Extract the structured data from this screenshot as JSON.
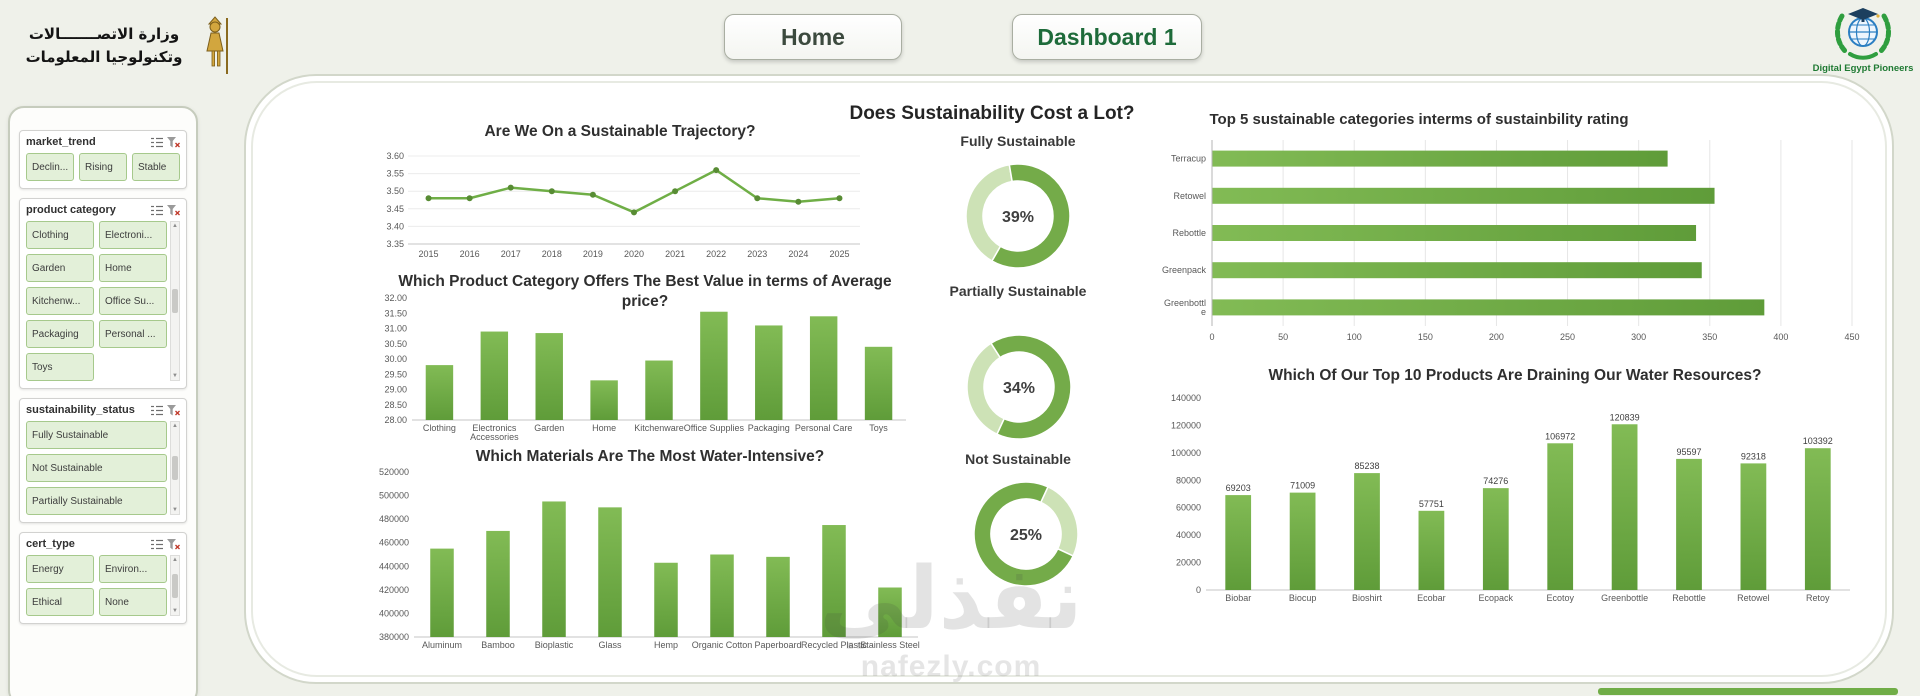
{
  "header": {
    "ministry": {
      "line1": "وزارة الاتصـــــــالات",
      "line2": "وتكنولوجيا المعلومات"
    },
    "nav": {
      "home": "Home",
      "dashboard": "Dashboard 1"
    },
    "brand": {
      "caption": "Digital Egypt Pioneers"
    }
  },
  "watermark": {
    "arabic": "نفذلي",
    "latin": "nafezly.com"
  },
  "colors": {
    "accent_green": "#70AD47",
    "donut_light": "#CDE2B6",
    "page_bg": "#EFF1EA"
  },
  "slicers": [
    {
      "title": "market_trend",
      "columns": 3,
      "scrollbar": false,
      "items": [
        "Declin...",
        "Rising",
        "Stable"
      ]
    },
    {
      "title": "product category",
      "columns": 2,
      "scrollbar": true,
      "items": [
        "Clothing",
        "Electroni...",
        "Garden",
        "Home",
        "Kitchenw...",
        "Office Su...",
        "Packaging",
        "Personal ...",
        "Toys"
      ]
    },
    {
      "title": "sustainability_status",
      "columns": 1,
      "scrollbar": true,
      "items": [
        "Fully Sustainable",
        "Not Sustainable",
        "Partially Sustainable"
      ]
    },
    {
      "title": "cert_type",
      "columns": 2,
      "scrollbar": true,
      "items": [
        "Energy",
        "Environ...",
        "Ethical",
        "None"
      ]
    }
  ],
  "chart_data": [
    {
      "id": "trend",
      "type": "line",
      "title": "Are We On a Sustainable Trajectory?",
      "x": [
        "2015",
        "2016",
        "2017",
        "2018",
        "2019",
        "2020",
        "2021",
        "2022",
        "2023",
        "2024",
        "2025"
      ],
      "values": [
        3.48,
        3.48,
        3.51,
        3.5,
        3.49,
        3.44,
        3.5,
        3.56,
        3.48,
        3.47,
        3.48
      ],
      "ylim": [
        3.35,
        3.6
      ],
      "ytick_step": 0.05,
      "grid": true
    },
    {
      "id": "avg-price",
      "type": "bar",
      "title": "Which Product Category Offers The Best Value in terms of Average price?",
      "categories": [
        "Clothing",
        "Electronics Accessories",
        "Garden",
        "Home",
        "Kitchenware",
        "Office Supplies",
        "Packaging",
        "Personal Care",
        "Toys"
      ],
      "values": [
        29.8,
        30.9,
        30.85,
        29.3,
        29.95,
        31.55,
        31.1,
        31.4,
        30.4
      ],
      "ylim": [
        28.0,
        32.0
      ],
      "ytick_step": 0.5
    },
    {
      "id": "materials",
      "type": "bar",
      "title": "Which Materials Are The Most Water-Intensive?",
      "categories": [
        "Aluminum",
        "Bamboo",
        "Bioplastic",
        "Glass",
        "Hemp",
        "Organic Cotton",
        "Paperboard",
        "Recycled Plastic",
        "Stainless Steel"
      ],
      "values": [
        455000,
        470000,
        495000,
        490000,
        443000,
        450000,
        448000,
        475000,
        422000
      ],
      "ylim": [
        380000,
        520000
      ],
      "ytick_step": 20000
    },
    {
      "id": "donuts",
      "type": "donut-group",
      "title": "Does Sustainability Cost a Lot?",
      "donuts": [
        {
          "label": "Fully Sustainable",
          "value": 39
        },
        {
          "label": "Partially Sustainable",
          "value": 34
        },
        {
          "label": "Not Sustainable",
          "value": 25
        }
      ]
    },
    {
      "id": "top5",
      "type": "hbar",
      "title": "Top 5 sustainable categories interms of  sustainbility rating",
      "categories": [
        "Terracup",
        "Retowel",
        "Rebottle",
        "Greenpack",
        "Greenbottle"
      ],
      "values": [
        320,
        353,
        340,
        344,
        388
      ],
      "xlim": [
        0,
        450
      ],
      "xtick_step": 50
    },
    {
      "id": "top10-water",
      "type": "bar",
      "title": "Which Of Our Top 10 Products Are Draining Our Water Resources?",
      "categories": [
        "Biobar",
        "Biocup",
        "Bioshirt",
        "Ecobar",
        "Ecopack",
        "Ecotoy",
        "Greenbottle",
        "Rebottle",
        "Retowel",
        "Retoy"
      ],
      "values": [
        69203,
        71009,
        85238,
        57751,
        74276,
        106972,
        120839,
        95597,
        92318,
        103392
      ],
      "ylim": [
        0,
        140000
      ],
      "ytick_step": 20000,
      "data_labels": true
    }
  ]
}
